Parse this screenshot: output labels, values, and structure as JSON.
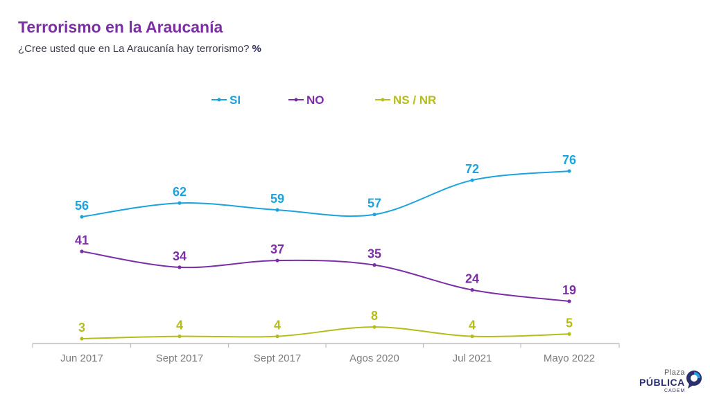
{
  "header": {
    "title": "Terrorismo en la Araucanía",
    "subtitle": "¿Cree usted que en La Araucanía hay terrorismo?",
    "unit": "%"
  },
  "logo": {
    "line1": "Plaza",
    "line2": "PÚBLICA",
    "line3": "CADEM"
  },
  "chart_data": {
    "type": "line",
    "categories": [
      "Jun 2017",
      "Sept 2017",
      "Sept 2017",
      "Agos 2020",
      "Jul 2021",
      "Mayo 2022"
    ],
    "series": [
      {
        "name": "SI",
        "color": "#1aa3de",
        "values": [
          56,
          62,
          59,
          57,
          72,
          76
        ]
      },
      {
        "name": "NO",
        "color": "#7b2fa6",
        "values": [
          41,
          34,
          37,
          35,
          24,
          19
        ]
      },
      {
        "name": "NS / NR",
        "color": "#b5bd1a",
        "values": [
          3,
          4,
          4,
          8,
          4,
          5
        ]
      }
    ],
    "ylim": [
      0,
      100
    ],
    "grid": false,
    "smooth": true,
    "data_labels": true,
    "legend_position": "top-center",
    "axis_color": "#bdbdbd",
    "tick_label_color": "#7a7a7a"
  }
}
